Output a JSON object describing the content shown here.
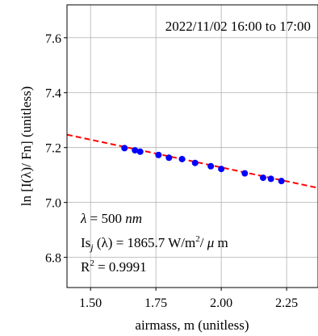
{
  "chart_data": {
    "type": "scatter",
    "title": "2022/11/02 16:00 to 17:00",
    "xlabel": "airmass, m (unitless)",
    "ylabel": "ln [I(λ)/ Fn] (unitless)",
    "xlim": [
      1.41,
      2.37
    ],
    "ylim": [
      6.69,
      7.72
    ],
    "x_ticks": [
      "1.50",
      "1.75",
      "2.00",
      "2.25"
    ],
    "x_tick_values": [
      1.5,
      1.75,
      2.0,
      2.25
    ],
    "y_ticks": [
      "6.8",
      "7.0",
      "7.2",
      "7.4",
      "7.6"
    ],
    "y_tick_values": [
      6.8,
      7.0,
      7.2,
      7.4,
      7.6
    ],
    "grid": true,
    "series": [
      {
        "kind": "points",
        "color": "#0000ff",
        "x": [
          1.63,
          1.67,
          1.69,
          1.76,
          1.8,
          1.85,
          1.9,
          1.96,
          2.0,
          2.09,
          2.16,
          2.19,
          2.23
        ],
        "y": [
          7.198,
          7.19,
          7.185,
          7.173,
          7.163,
          7.158,
          7.144,
          7.132,
          7.122,
          7.106,
          7.09,
          7.086,
          7.078
        ]
      },
      {
        "kind": "fit-line",
        "color": "#ff0000",
        "dashed": true,
        "x": [
          1.41,
          2.37
        ],
        "y": [
          7.247,
          7.053
        ]
      }
    ],
    "annotations": {
      "lambda": "λ = 500 nm",
      "is": "Is_j (λ) = 1865.7 W/m²/ μ m",
      "r2": "R² = 0.9991"
    }
  }
}
